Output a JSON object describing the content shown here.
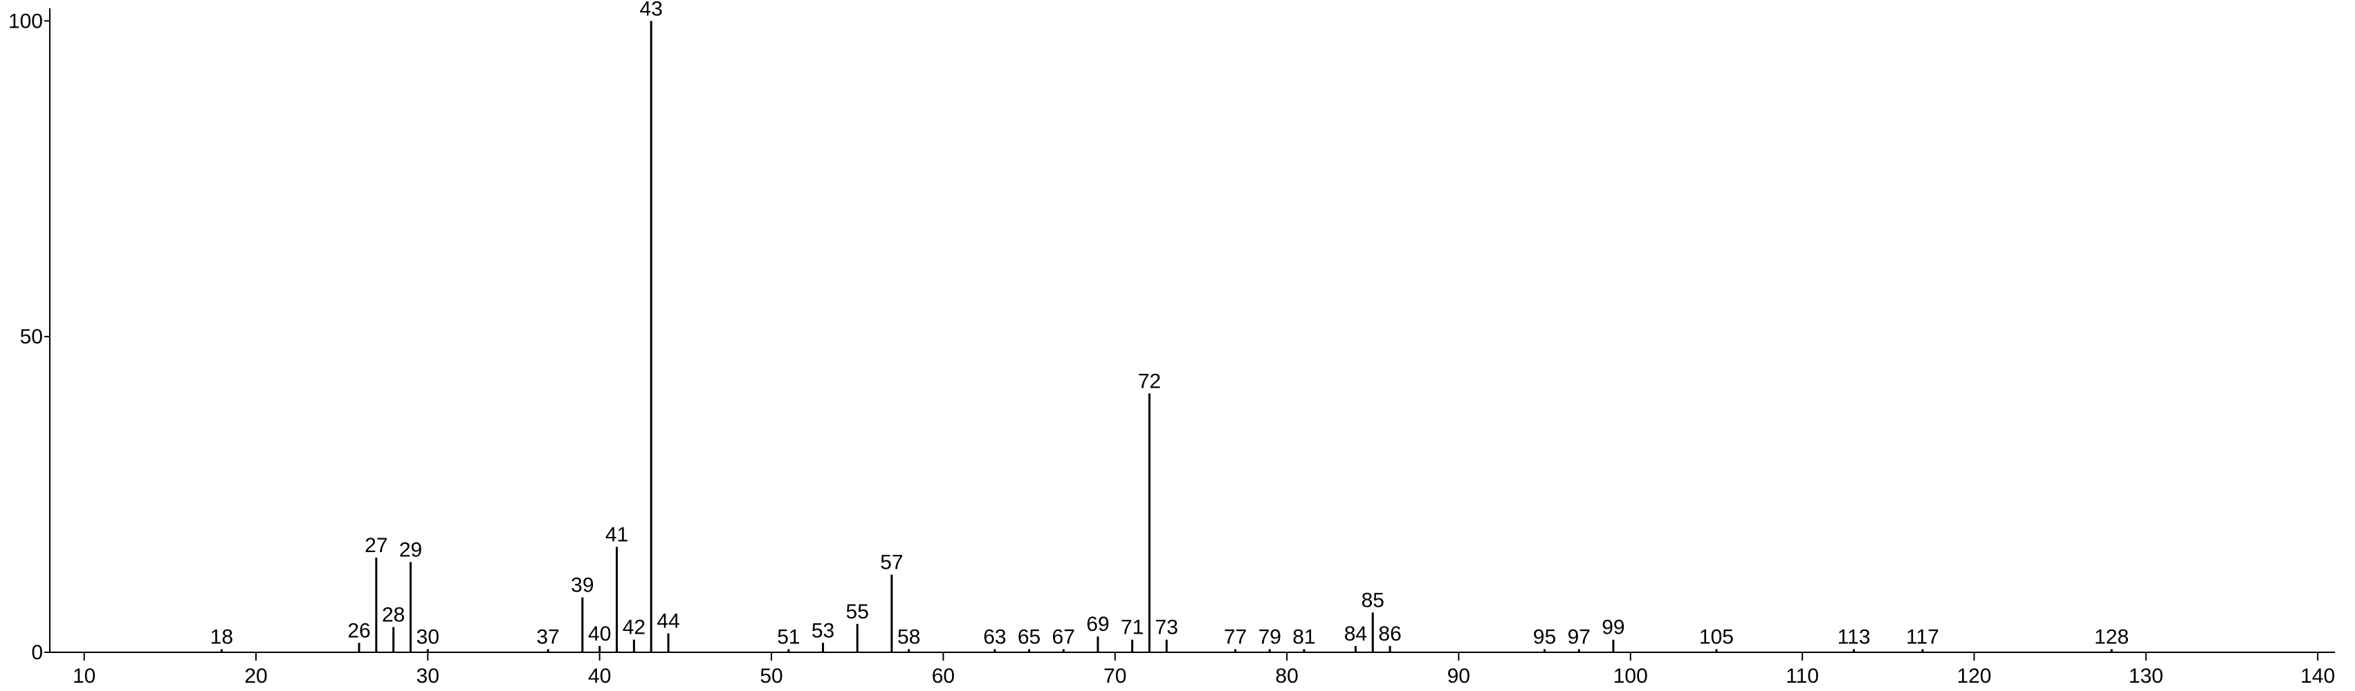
{
  "chart_data": {
    "type": "stem",
    "x": [
      18,
      26,
      27,
      28,
      29,
      30,
      37,
      39,
      40,
      41,
      42,
      43,
      44,
      51,
      53,
      55,
      57,
      58,
      63,
      65,
      67,
      69,
      71,
      72,
      73,
      77,
      79,
      81,
      84,
      85,
      86,
      95,
      97,
      99,
      105,
      113,
      117,
      128
    ],
    "values": [
      0.5,
      1.5,
      15,
      4,
      14.3,
      0.5,
      0.5,
      8.7,
      1,
      16.7,
      2,
      100,
      3,
      0.5,
      1.5,
      4.5,
      12.3,
      0.5,
      0.5,
      0.5,
      0.5,
      2.5,
      2,
      41,
      2,
      0.5,
      0.5,
      0.5,
      1,
      6.3,
      1,
      0.5,
      0.5,
      2,
      0.5,
      0.5,
      0.5,
      0.5
    ],
    "color": "#000000",
    "xlim": [
      8,
      141
    ],
    "ylim": [
      0,
      102
    ],
    "xticks": [
      10,
      20,
      30,
      40,
      50,
      60,
      70,
      80,
      90,
      100,
      110,
      120,
      130,
      140
    ],
    "yticks": [
      0,
      50,
      100
    ]
  }
}
